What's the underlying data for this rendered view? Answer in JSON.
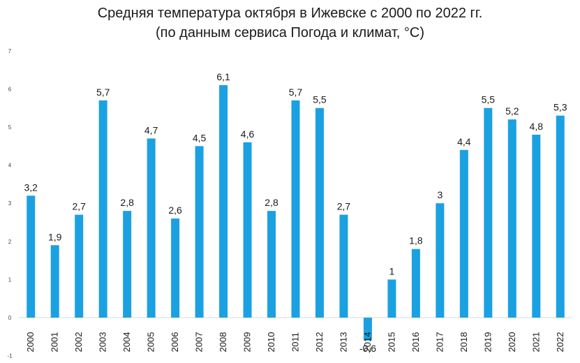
{
  "chart_data": {
    "type": "bar",
    "title": "Средняя температура октября в Ижевске с 2000 по 2022 гг.",
    "subtitle": "(по данным сервиса Погода и климат, °C)",
    "categories": [
      "2000",
      "2001",
      "2002",
      "2003",
      "2004",
      "2005",
      "2006",
      "2007",
      "2008",
      "2009",
      "2010",
      "2011",
      "2012",
      "2013",
      "2014",
      "2015",
      "2016",
      "2017",
      "2018",
      "2019",
      "2020",
      "2021",
      "2022"
    ],
    "values": [
      3.2,
      1.9,
      2.7,
      5.7,
      2.8,
      4.7,
      2.6,
      4.5,
      6.1,
      4.6,
      2.8,
      5.7,
      5.5,
      2.7,
      -0.6,
      1,
      1.8,
      3,
      4.4,
      5.5,
      5.2,
      4.8,
      5.3
    ],
    "data_labels": [
      "3,2",
      "1,9",
      "2,7",
      "5,7",
      "2,8",
      "4,7",
      "2,6",
      "4,5",
      "6,1",
      "4,6",
      "2,8",
      "5,7",
      "5,5",
      "2,7",
      "-0,6",
      "1",
      "1,8",
      "3",
      "4,4",
      "5,5",
      "5,2",
      "4,8",
      "5,3"
    ],
    "y_ticks": [
      "-1",
      "0",
      "1",
      "2",
      "3",
      "4",
      "5",
      "6",
      "7"
    ],
    "ylim": [
      -1,
      7
    ],
    "xlabel": "",
    "ylabel": "",
    "grid": false,
    "legend": "none",
    "bar_color": "#1ba1e2"
  }
}
